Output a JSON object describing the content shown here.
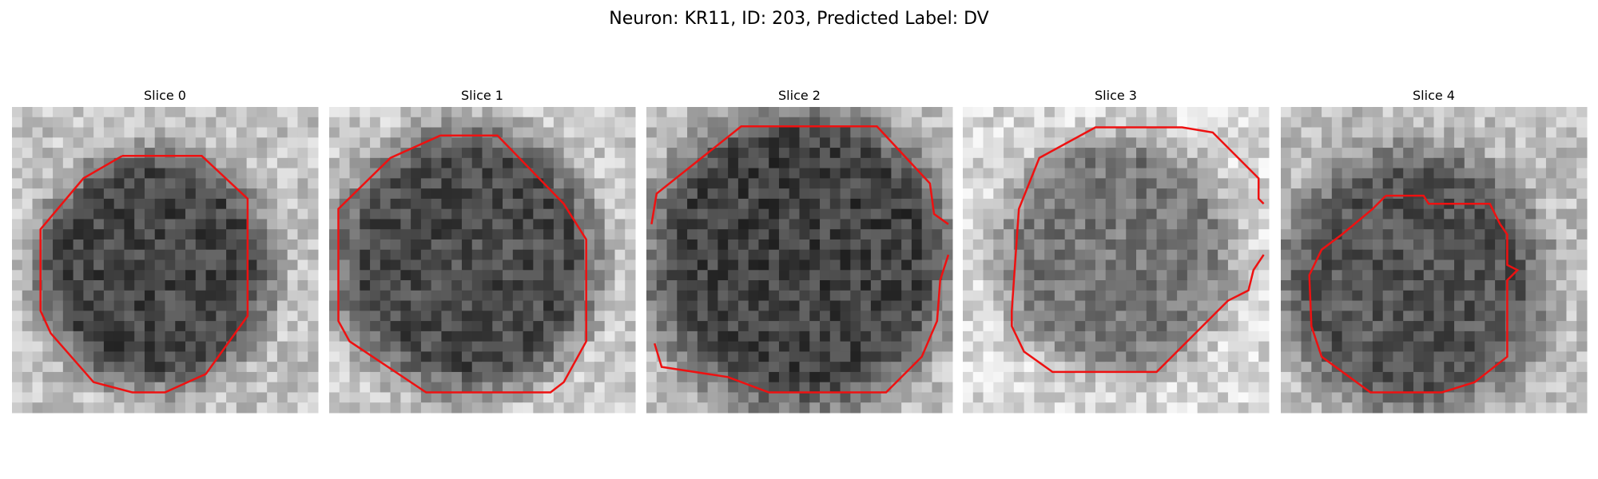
{
  "title": "Neuron: KR11, ID: 203, Predicted Label: DV",
  "panels": [
    {
      "title": "Slice 0"
    },
    {
      "title": "Slice 1"
    },
    {
      "title": "Slice 2"
    },
    {
      "title": "Slice 3"
    },
    {
      "title": "Slice 4"
    }
  ]
}
